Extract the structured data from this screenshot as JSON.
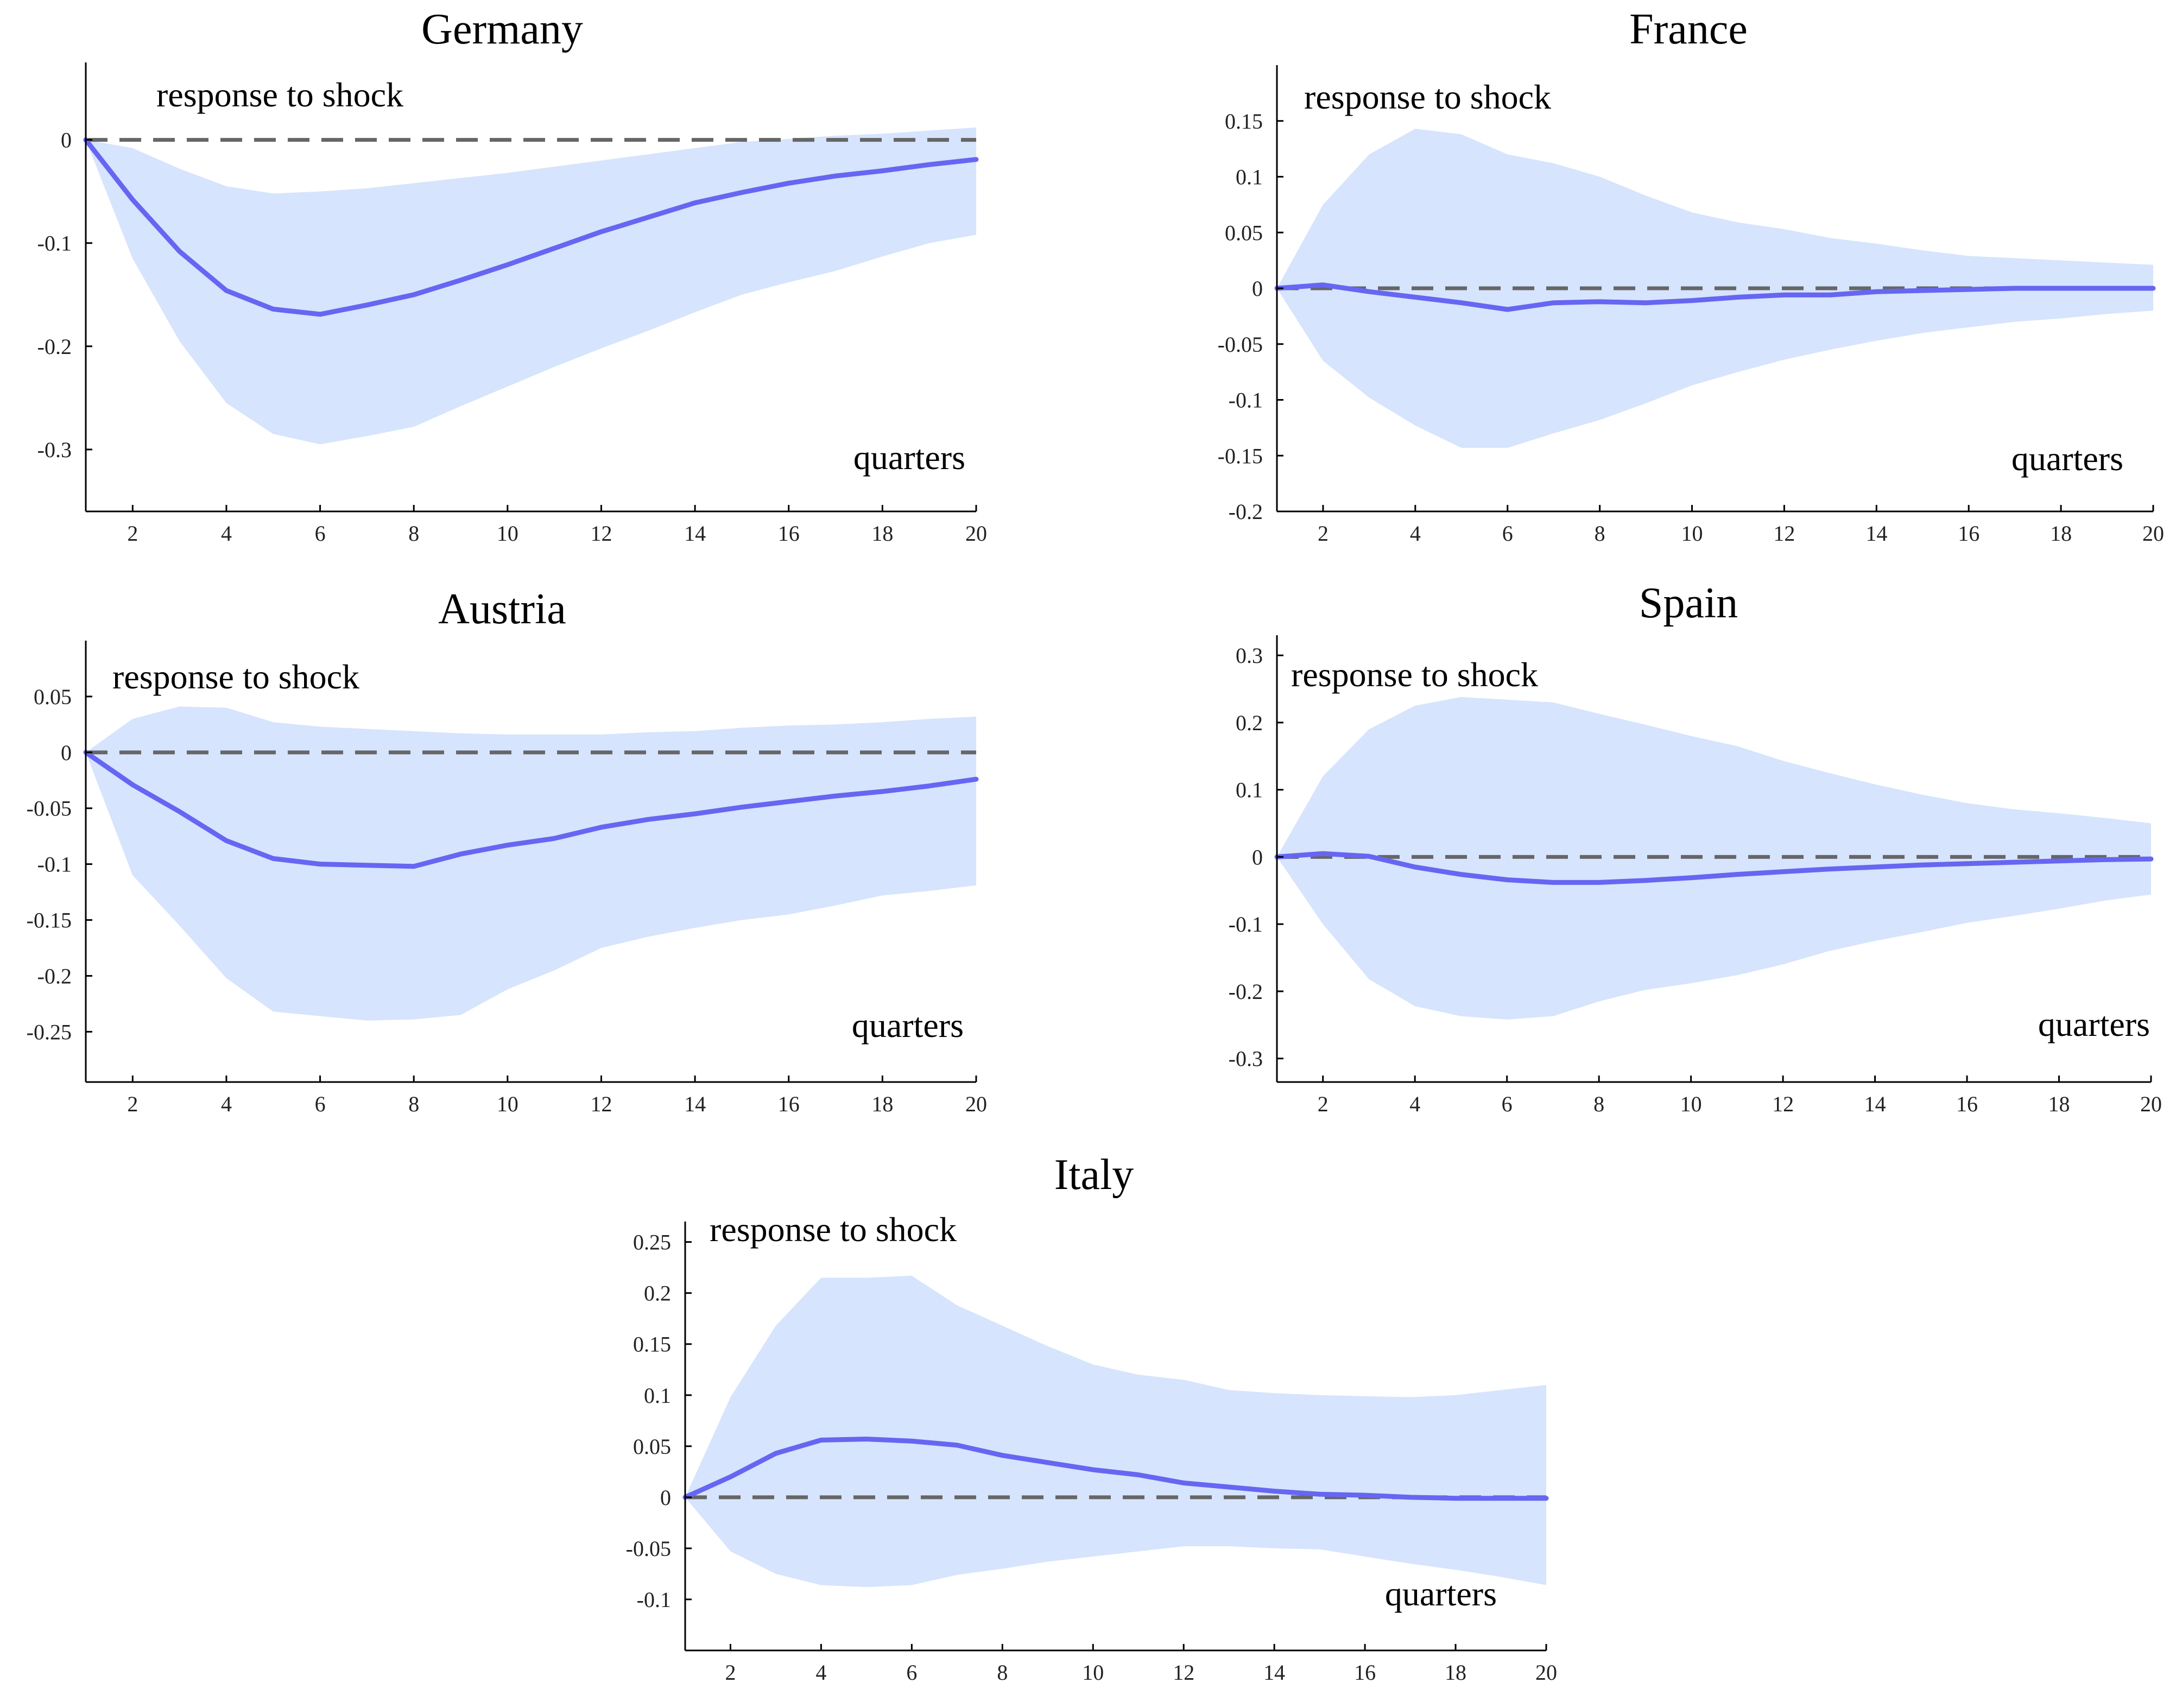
{
  "chart_data": [
    {
      "type": "line",
      "title": "Germany",
      "annotation": "response to shock",
      "xlabel": "quarters",
      "x": [
        1,
        2,
        3,
        4,
        5,
        6,
        7,
        8,
        9,
        10,
        11,
        12,
        13,
        14,
        15,
        16,
        17,
        18,
        19,
        20
      ],
      "xticks": [
        2,
        4,
        6,
        8,
        10,
        12,
        14,
        16,
        18,
        20
      ],
      "xlim": [
        1,
        20
      ],
      "ylim": [
        -0.36,
        0.075
      ],
      "yticks": [
        0,
        -0.1,
        -0.2,
        -0.3
      ],
      "ytick_labels": [
        "0",
        "-0.1",
        "-0.2",
        "-0.3"
      ],
      "series": [
        {
          "name": "response",
          "values": [
            0,
            -0.058,
            -0.108,
            -0.146,
            -0.164,
            -0.169,
            -0.16,
            -0.15,
            -0.136,
            -0.121,
            -0.105,
            -0.089,
            -0.075,
            -0.061,
            -0.051,
            -0.042,
            -0.035,
            -0.03,
            -0.024,
            -0.019
          ]
        },
        {
          "name": "upper band",
          "values": [
            0,
            -0.008,
            -0.028,
            -0.045,
            -0.052,
            -0.05,
            -0.047,
            -0.042,
            -0.037,
            -0.032,
            -0.026,
            -0.02,
            -0.014,
            -0.008,
            -0.002,
            0.001,
            0.004,
            0.006,
            0.009,
            0.012
          ]
        },
        {
          "name": "lower band",
          "values": [
            0,
            -0.115,
            -0.195,
            -0.255,
            -0.285,
            -0.295,
            -0.287,
            -0.278,
            -0.258,
            -0.239,
            -0.22,
            -0.202,
            -0.185,
            -0.167,
            -0.15,
            -0.138,
            -0.127,
            -0.113,
            -0.1,
            -0.092
          ]
        }
      ]
    },
    {
      "type": "line",
      "title": "France",
      "annotation": "response to shock",
      "xlabel": "quarters",
      "x": [
        1,
        2,
        3,
        4,
        5,
        6,
        7,
        8,
        9,
        10,
        11,
        12,
        13,
        14,
        15,
        16,
        17,
        18,
        19,
        20
      ],
      "xticks": [
        2,
        4,
        6,
        8,
        10,
        12,
        14,
        16,
        18,
        20
      ],
      "xlim": [
        1,
        20
      ],
      "ylim": [
        -0.2,
        0.2
      ],
      "yticks": [
        0.15,
        0.1,
        0.05,
        0,
        -0.05,
        -0.1,
        -0.15,
        -0.2
      ],
      "ytick_labels": [
        "0.15",
        "0.1",
        "0.05",
        "0",
        "-0.05",
        "-0.1",
        "-0.15",
        "-0.2"
      ],
      "series": [
        {
          "name": "response",
          "values": [
            0,
            0.003,
            -0.003,
            -0.008,
            -0.013,
            -0.019,
            -0.013,
            -0.012,
            -0.013,
            -0.011,
            -0.008,
            -0.006,
            -0.006,
            -0.003,
            -0.002,
            -0.001,
            0,
            0,
            0,
            0
          ]
        },
        {
          "name": "upper band",
          "values": [
            0,
            0.075,
            0.12,
            0.143,
            0.138,
            0.12,
            0.112,
            0.1,
            0.083,
            0.068,
            0.059,
            0.053,
            0.045,
            0.04,
            0.034,
            0.029,
            0.027,
            0.025,
            0.023,
            0.021
          ]
        },
        {
          "name": "lower band",
          "values": [
            0,
            -0.065,
            -0.098,
            -0.123,
            -0.143,
            -0.143,
            -0.13,
            -0.118,
            -0.103,
            -0.087,
            -0.075,
            -0.064,
            -0.055,
            -0.047,
            -0.04,
            -0.035,
            -0.03,
            -0.027,
            -0.023,
            -0.02
          ]
        }
      ]
    },
    {
      "type": "line",
      "title": "Austria",
      "annotation": "response to shock",
      "xlabel": "quarters",
      "x": [
        1,
        2,
        3,
        4,
        5,
        6,
        7,
        8,
        9,
        10,
        11,
        12,
        13,
        14,
        15,
        16,
        17,
        18,
        19,
        20
      ],
      "xticks": [
        2,
        4,
        6,
        8,
        10,
        12,
        14,
        16,
        18,
        20
      ],
      "xlim": [
        1,
        20
      ],
      "ylim": [
        -0.295,
        0.1
      ],
      "yticks": [
        0.05,
        0,
        -0.05,
        -0.1,
        -0.15,
        -0.2,
        -0.25
      ],
      "ytick_labels": [
        "0.05",
        "0",
        "-0.05",
        "-0.1",
        "-0.15",
        "-0.2",
        "-0.25"
      ],
      "series": [
        {
          "name": "response",
          "values": [
            0,
            -0.029,
            -0.053,
            -0.079,
            -0.095,
            -0.1,
            -0.101,
            -0.102,
            -0.091,
            -0.083,
            -0.077,
            -0.067,
            -0.06,
            -0.055,
            -0.049,
            -0.044,
            -0.039,
            -0.035,
            -0.03,
            -0.024
          ]
        },
        {
          "name": "upper band",
          "values": [
            0,
            0.03,
            0.041,
            0.04,
            0.027,
            0.023,
            0.021,
            0.019,
            0.017,
            0.016,
            0.016,
            0.016,
            0.018,
            0.019,
            0.022,
            0.024,
            0.025,
            0.027,
            0.03,
            0.032
          ]
        },
        {
          "name": "lower band",
          "values": [
            0,
            -0.11,
            -0.155,
            -0.202,
            -0.232,
            -0.236,
            -0.24,
            -0.239,
            -0.235,
            -0.212,
            -0.195,
            -0.175,
            -0.165,
            -0.157,
            -0.15,
            -0.145,
            -0.137,
            -0.128,
            -0.124,
            -0.119
          ]
        }
      ]
    },
    {
      "type": "line",
      "title": "Spain",
      "annotation": "response to shock",
      "xlabel": "quarters",
      "x": [
        1,
        2,
        3,
        4,
        5,
        6,
        7,
        8,
        9,
        10,
        11,
        12,
        13,
        14,
        15,
        16,
        17,
        18,
        19,
        20
      ],
      "xticks": [
        2,
        4,
        6,
        8,
        10,
        12,
        14,
        16,
        18,
        20
      ],
      "xlim": [
        1,
        20
      ],
      "ylim": [
        -0.335,
        0.33
      ],
      "yticks": [
        0.3,
        0.2,
        0.1,
        0,
        -0.1,
        -0.2,
        -0.3
      ],
      "ytick_labels": [
        "0.3",
        "0.2",
        "0.1",
        "0",
        "-0.1",
        "-0.2",
        "-0.3"
      ],
      "series": [
        {
          "name": "response",
          "values": [
            0,
            0.005,
            0.001,
            -0.015,
            -0.026,
            -0.034,
            -0.038,
            -0.038,
            -0.035,
            -0.031,
            -0.026,
            -0.022,
            -0.018,
            -0.015,
            -0.012,
            -0.01,
            -0.008,
            -0.006,
            -0.004,
            -0.003
          ]
        },
        {
          "name": "upper band",
          "values": [
            0,
            0.12,
            0.19,
            0.225,
            0.238,
            0.234,
            0.23,
            0.213,
            0.197,
            0.18,
            0.165,
            0.143,
            0.125,
            0.108,
            0.093,
            0.08,
            0.071,
            0.065,
            0.058,
            0.05
          ]
        },
        {
          "name": "lower band",
          "values": [
            0,
            -0.1,
            -0.182,
            -0.222,
            -0.237,
            -0.242,
            -0.237,
            -0.215,
            -0.198,
            -0.188,
            -0.176,
            -0.16,
            -0.14,
            -0.125,
            -0.112,
            -0.098,
            -0.088,
            -0.077,
            -0.065,
            -0.056
          ]
        }
      ]
    },
    {
      "type": "line",
      "title": "Italy",
      "annotation": "response to shock",
      "xlabel": "quarters",
      "x": [
        1,
        2,
        3,
        4,
        5,
        6,
        7,
        8,
        9,
        10,
        11,
        12,
        13,
        14,
        15,
        16,
        17,
        18,
        19,
        20
      ],
      "xticks": [
        2,
        4,
        6,
        8,
        10,
        12,
        14,
        16,
        18,
        20
      ],
      "xlim": [
        1,
        20
      ],
      "ylim": [
        -0.15,
        0.27
      ],
      "yticks": [
        0.25,
        0.2,
        0.15,
        0.1,
        0.05,
        0,
        -0.05,
        -0.1
      ],
      "ytick_labels": [
        "0.25",
        "0.2",
        "0.15",
        "0.1",
        "0.05",
        "0",
        "-0.05",
        "-0.1"
      ],
      "series": [
        {
          "name": "response",
          "values": [
            0,
            0.02,
            0.043,
            0.056,
            0.057,
            0.055,
            0.051,
            0.041,
            0.034,
            0.027,
            0.022,
            0.014,
            0.01,
            0.006,
            0.003,
            0.002,
            0.0,
            -0.001,
            -0.001,
            -0.001
          ]
        },
        {
          "name": "upper band",
          "values": [
            0,
            0.098,
            0.168,
            0.215,
            0.215,
            0.217,
            0.188,
            0.168,
            0.148,
            0.13,
            0.12,
            0.115,
            0.105,
            0.102,
            0.1,
            0.099,
            0.098,
            0.1,
            0.105,
            0.11
          ]
        },
        {
          "name": "lower band",
          "values": [
            0,
            -0.053,
            -0.075,
            -0.086,
            -0.088,
            -0.086,
            -0.076,
            -0.07,
            -0.063,
            -0.058,
            -0.053,
            -0.048,
            -0.048,
            -0.05,
            -0.051,
            -0.058,
            -0.065,
            -0.071,
            -0.078,
            -0.086
          ]
        }
      ]
    }
  ]
}
